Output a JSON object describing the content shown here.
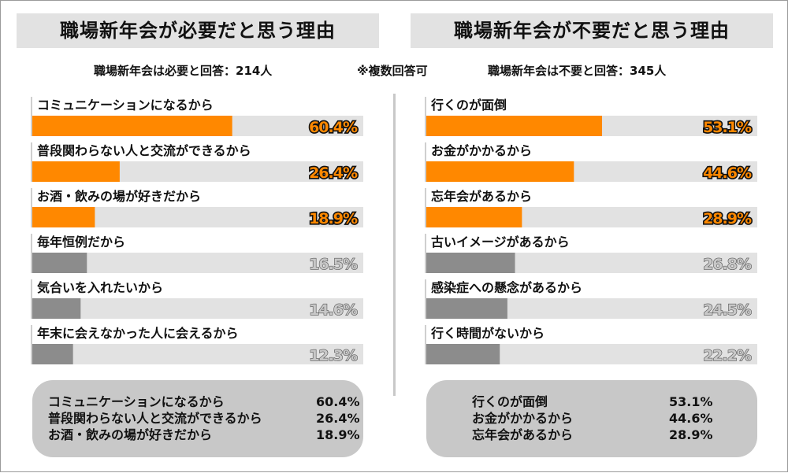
{
  "colors": {
    "top3": "#ff8800",
    "others": "#8c8c8c",
    "track": "#e2e2e2",
    "pct_top3_fill": "#ff8800",
    "pct_top3_stroke": "#111111",
    "pct_others_fill": "#c8c8c8",
    "pct_others_stroke": "#555555"
  },
  "note": "※複数回答可",
  "chart_data": [
    {
      "type": "bar",
      "orientation": "horizontal",
      "title": "職場新年会が必要だと思う理由",
      "respondents": "職場新年会は必要と回答：214人",
      "xlim": [
        0,
        100
      ],
      "unit": "%",
      "categories": [
        "コミュニケーションになるから",
        "普段関わらない人と交流ができるから",
        "お酒・飲みの場が好きだから",
        "毎年恒例だから",
        "気合いを入れたいから",
        "年末に会えなかった人に会えるから"
      ],
      "values": [
        60.4,
        26.4,
        18.9,
        16.5,
        14.6,
        12.3
      ],
      "value_labels": [
        "60.4%",
        "26.4%",
        "18.9%",
        "16.5%",
        "14.6%",
        "12.3%"
      ],
      "highlight_top": 3,
      "summary": [
        {
          "label": "コミュニケーションになるから",
          "value": "60.4%"
        },
        {
          "label": "普段関わらない人と交流ができるから",
          "value": "26.4%"
        },
        {
          "label": "お酒・飲みの場が好きだから",
          "value": "18.9%"
        }
      ]
    },
    {
      "type": "bar",
      "orientation": "horizontal",
      "title": "職場新年会が不要だと思う理由",
      "respondents": "職場新年会は不要と回答：345人",
      "xlim": [
        0,
        100
      ],
      "unit": "%",
      "categories": [
        "行くのが面倒",
        "お金がかかるから",
        "忘年会があるから",
        "古いイメージがあるから",
        "感染症への懸念があるから",
        "行く時間がないから"
      ],
      "values": [
        53.1,
        44.6,
        28.9,
        26.8,
        24.5,
        22.2
      ],
      "value_labels": [
        "53.1%",
        "44.6%",
        "28.9%",
        "26.8%",
        "24.5%",
        "22.2%"
      ],
      "highlight_top": 3,
      "summary": [
        {
          "label": "行くのが面倒",
          "value": "53.1%"
        },
        {
          "label": "お金がかかるから",
          "value": "44.6%"
        },
        {
          "label": "忘年会があるから",
          "value": "28.9%"
        }
      ]
    }
  ]
}
